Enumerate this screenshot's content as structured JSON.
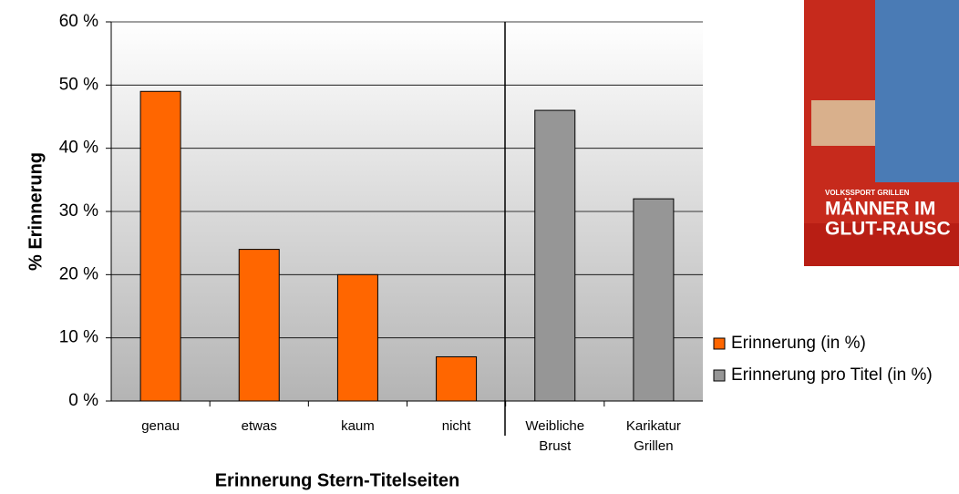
{
  "chart_data": {
    "type": "bar",
    "x_label": "Erinnerung Stern-Titelseiten",
    "y_label": "% Erinnerung",
    "categories": [
      "genau",
      "etwas",
      "kaum",
      "nicht",
      "Weibliche Brust",
      "Karikatur Grillen"
    ],
    "series": [
      {
        "name": "Erinnerung (in %)",
        "color": "#ff6600",
        "values": [
          49,
          24,
          20,
          7,
          null,
          null
        ]
      },
      {
        "name": "Erinnerung pro Titel (in %)",
        "color": "#969696",
        "values": [
          null,
          null,
          null,
          null,
          46,
          32
        ]
      }
    ],
    "ylim": [
      0,
      60
    ],
    "yticks": [
      {
        "value": 0,
        "label": "0 %"
      },
      {
        "value": 10,
        "label": "10 %"
      },
      {
        "value": 20,
        "label": "20 %"
      },
      {
        "value": 30,
        "label": "30 %"
      },
      {
        "value": 40,
        "label": "40 %"
      },
      {
        "value": 50,
        "label": "50 %"
      },
      {
        "value": 60,
        "label": "60 %"
      }
    ],
    "grid": true,
    "legend": "right"
  },
  "cover": {
    "teaser": "VOLKSSPORT GRILLEN",
    "headline_1": "MÄNNER IM",
    "headline_2": "GLUT-RAUSC"
  }
}
